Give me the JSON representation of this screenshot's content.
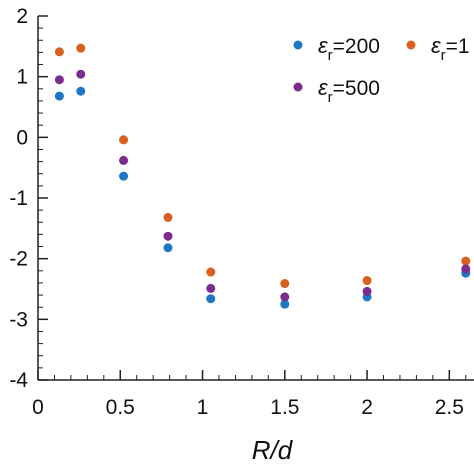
{
  "chart_data": {
    "type": "scatter",
    "title": "",
    "xlabel": "R/d",
    "ylabel": "",
    "xlim": [
      0,
      2.65
    ],
    "ylim": [
      -4,
      2
    ],
    "xticks": [
      "0",
      "0.5",
      "1",
      "1.5",
      "2",
      "2.5"
    ],
    "yticks": [
      "2",
      "1",
      "0",
      "-1",
      "-2",
      "-3",
      "-4"
    ],
    "legend_position": "top-right",
    "series": [
      {
        "name": "εr=200",
        "color": "#1f77c4",
        "x": [
          0.13,
          0.26,
          0.52,
          0.79,
          1.05,
          1.5,
          2.0,
          2.6
        ],
        "y": [
          0.68,
          0.76,
          -0.64,
          -1.82,
          -2.66,
          -2.75,
          -2.63,
          -2.24
        ]
      },
      {
        "name": "εr=1",
        "color": "#d95f1f",
        "x": [
          0.13,
          0.26,
          0.52,
          0.79,
          1.05,
          1.5,
          2.0,
          2.6
        ],
        "y": [
          1.41,
          1.47,
          -0.04,
          -1.32,
          -2.22,
          -2.41,
          -2.36,
          -2.04
        ]
      },
      {
        "name": "εr=500",
        "color": "#7b2d8e",
        "x": [
          0.13,
          0.26,
          0.52,
          0.79,
          1.05,
          1.5,
          2.0,
          2.6
        ],
        "y": [
          0.95,
          1.04,
          -0.38,
          -1.63,
          -2.49,
          -2.63,
          -2.54,
          -2.17
        ]
      }
    ],
    "legend": [
      {
        "symbol": "ε",
        "sub": "r",
        "value": "=200",
        "color": "#1f77c4"
      },
      {
        "symbol": "ε",
        "sub": "r",
        "value": "=1",
        "color": "#d95f1f"
      },
      {
        "symbol": "ε",
        "sub": "r",
        "value": "=500",
        "color": "#7b2d8e"
      }
    ]
  }
}
